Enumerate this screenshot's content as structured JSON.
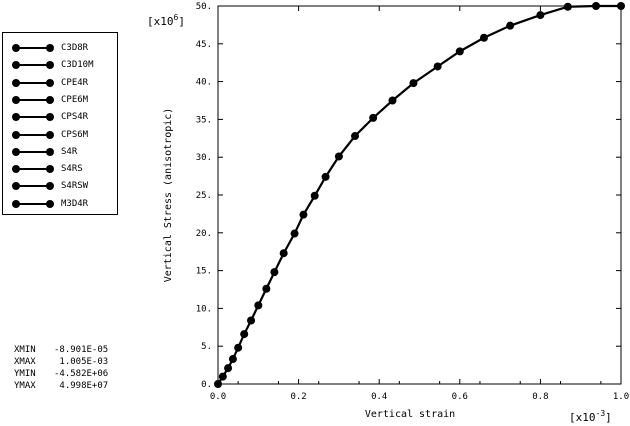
{
  "chart_data": {
    "type": "line",
    "xlabel": "Vertical strain",
    "ylabel": "Vertical Stress (anisotropic)",
    "x_multiplier": "[x10",
    "x_multiplier_exp": "-3",
    "y_multiplier": "[x10",
    "y_multiplier_exp": "6",
    "xlim": [
      0.0,
      1.0
    ],
    "ylim": [
      0,
      50
    ],
    "x_ticks": [
      "0.0",
      "0.2",
      "0.4",
      "0.6",
      "0.8",
      "1.0"
    ],
    "y_ticks": [
      "0.",
      "5.",
      "10.",
      "15.",
      "20.",
      "25.",
      "30.",
      "35.",
      "40.",
      "45.",
      "50."
    ],
    "x_tick_values": [
      0.0,
      0.2,
      0.4,
      0.6,
      0.8,
      1.0
    ],
    "y_tick_values": [
      0,
      5,
      10,
      15,
      20,
      25,
      30,
      35,
      40,
      45,
      50
    ],
    "grid": false,
    "legend_position": "top-left, outside plot",
    "series": [
      {
        "name": "C3D8R"
      },
      {
        "name": "C3D10M"
      },
      {
        "name": "CPE4R"
      },
      {
        "name": "CPE6M"
      },
      {
        "name": "CPS4R"
      },
      {
        "name": "CPS6M"
      },
      {
        "name": "S4R"
      },
      {
        "name": "S4RS"
      },
      {
        "name": "S4RSW"
      },
      {
        "name": "M3D4R"
      }
    ],
    "x": [
      0.0,
      0.012,
      0.025,
      0.037,
      0.05,
      0.065,
      0.082,
      0.1,
      0.12,
      0.14,
      0.163,
      0.19,
      0.212,
      0.24,
      0.267,
      0.3,
      0.34,
      0.385,
      0.433,
      0.485,
      0.545,
      0.6,
      0.66,
      0.725,
      0.8,
      0.868,
      0.938,
      1.0
    ],
    "y": [
      0.0,
      0.98,
      2.1,
      3.3,
      4.8,
      6.6,
      8.4,
      10.4,
      12.6,
      14.8,
      17.3,
      19.9,
      22.4,
      24.9,
      27.4,
      30.1,
      32.8,
      35.2,
      37.5,
      39.8,
      42.0,
      44.0,
      45.8,
      47.4,
      48.8,
      49.9,
      50.0,
      50.0
    ],
    "line_color": "#000000"
  },
  "limits": [
    {
      "key": "XMIN",
      "value": "-8.901E-05"
    },
    {
      "key": "XMAX",
      "value": " 1.005E-03"
    },
    {
      "key": "YMIN",
      "value": "-4.582E+06"
    },
    {
      "key": "YMAX",
      "value": " 4.998E+07"
    }
  ]
}
